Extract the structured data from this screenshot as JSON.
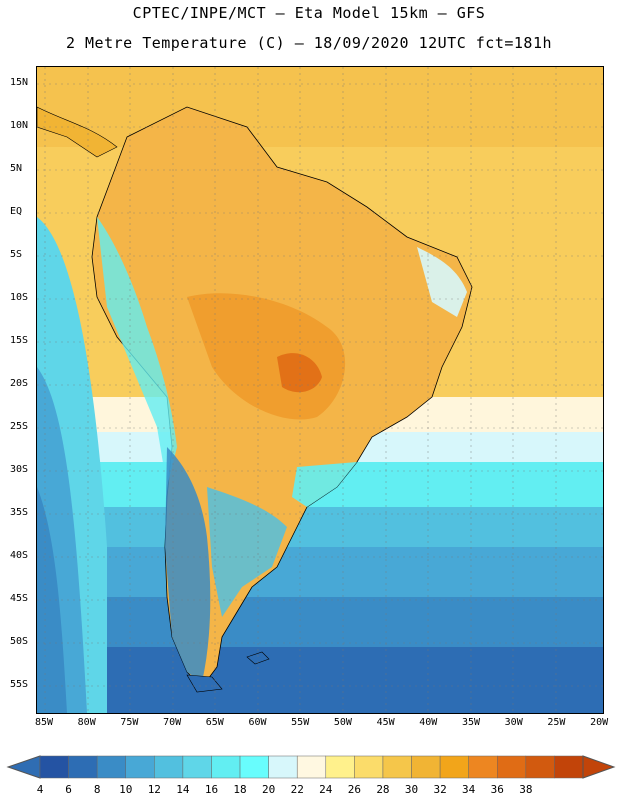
{
  "title": {
    "line1": "CPTEC/INPE/MCT –  Eta Model 15km – GFS",
    "line2": "2 Metre Temperature (C) – 18/09/2020 12UTC fct=181h"
  },
  "map": {
    "lat_labels": [
      "15N",
      "10N",
      "5N",
      "EQ",
      "5S",
      "10S",
      "15S",
      "20S",
      "25S",
      "30S",
      "35S",
      "40S",
      "45S",
      "50S",
      "55S"
    ],
    "lon_labels": [
      "85W",
      "80W",
      "75W",
      "70W",
      "65W",
      "60W",
      "55W",
      "50W",
      "45W",
      "40W",
      "35W",
      "30W",
      "25W",
      "20W"
    ]
  },
  "colorbar": {
    "ticks": [
      "4",
      "6",
      "8",
      "10",
      "12",
      "14",
      "16",
      "18",
      "20",
      "22",
      "24",
      "26",
      "28",
      "30",
      "32",
      "34",
      "36",
      "38"
    ],
    "colors": [
      "#2453a3",
      "#2d6db4",
      "#3a8cc6",
      "#48a8d6",
      "#52c0df",
      "#5fd6e8",
      "#62eef2",
      "#68fdfd",
      "#d7f7fb",
      "#fff8e1",
      "#fff18c",
      "#fbdc6a",
      "#f5c64a",
      "#f1b434",
      "#f2a51a",
      "#ed8621",
      "#e06c15",
      "#d25a0f",
      "#c24409"
    ],
    "under_color": "#2f6db3",
    "over_color": "#c24409"
  }
}
